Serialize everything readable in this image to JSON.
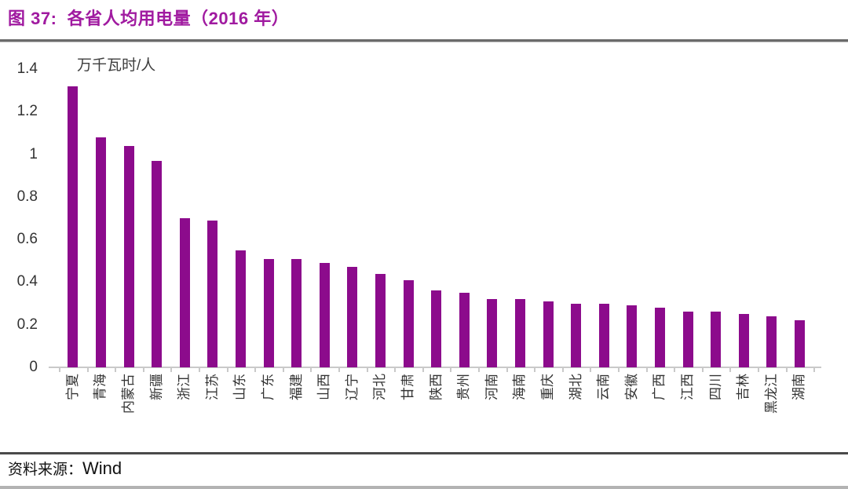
{
  "figure": {
    "title": "图 37:  各省人均用电量（2016 年）",
    "source_label": "资料来源：",
    "source_value": "Wind"
  },
  "chart_data": {
    "type": "bar",
    "title": "各省人均用电量（2016 年）",
    "unit_label": "万千瓦时/人",
    "categories": [
      "宁夏",
      "青海",
      "内蒙古",
      "新疆",
      "浙江",
      "江苏",
      "山东",
      "广东",
      "福建",
      "山西",
      "辽宁",
      "河北",
      "甘肃",
      "陕西",
      "贵州",
      "河南",
      "海南",
      "重庆",
      "湖北",
      "云南",
      "安徽",
      "广西",
      "江西",
      "四川",
      "吉林",
      "黑龙江",
      "湖南"
    ],
    "values": [
      1.32,
      1.08,
      1.04,
      0.97,
      0.7,
      0.69,
      0.55,
      0.51,
      0.51,
      0.49,
      0.47,
      0.44,
      0.41,
      0.36,
      0.35,
      0.32,
      0.32,
      0.31,
      0.3,
      0.3,
      0.29,
      0.28,
      0.26,
      0.26,
      0.25,
      0.24,
      0.22
    ],
    "ylim": [
      0,
      1.4
    ],
    "yticks": [
      0,
      0.2,
      0.4,
      0.6,
      0.8,
      1,
      1.2,
      1.4
    ],
    "xlabel": "",
    "ylabel": "万千瓦时/人",
    "grid": false,
    "legend": false
  },
  "colors": {
    "title": "#A01AA0",
    "bar": "#8C0B8C",
    "axis_line": "#C9C9C9",
    "tick_text": "#333333"
  }
}
